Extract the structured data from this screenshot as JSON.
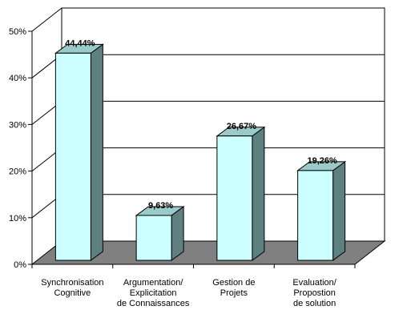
{
  "chart_data": {
    "type": "bar",
    "title": "",
    "xlabel": "",
    "ylabel": "",
    "ylim": [
      0,
      50
    ],
    "yticks": [
      "0%",
      "10%",
      "20%",
      "30%",
      "40%",
      "50%"
    ],
    "categories": [
      [
        "Synchronisation",
        "Cognitive"
      ],
      [
        "Argumentation/",
        "Explicitation",
        "de Connaissances"
      ],
      [
        "Gestion de",
        "Projets"
      ],
      [
        "Evaluation/",
        "Propostion",
        "de solution"
      ]
    ],
    "values": [
      44.44,
      9.63,
      26.67,
      19.26
    ],
    "data_labels": [
      "44,44%",
      "9,63%",
      "26,67%",
      "19,26%"
    ],
    "grid": true,
    "style": "3d-bar",
    "colors": {
      "bar_front": "#ccffff",
      "bar_side": "#5f8080",
      "bar_top": "#9acaca",
      "floor": "#808080",
      "grid": "#000000"
    }
  }
}
